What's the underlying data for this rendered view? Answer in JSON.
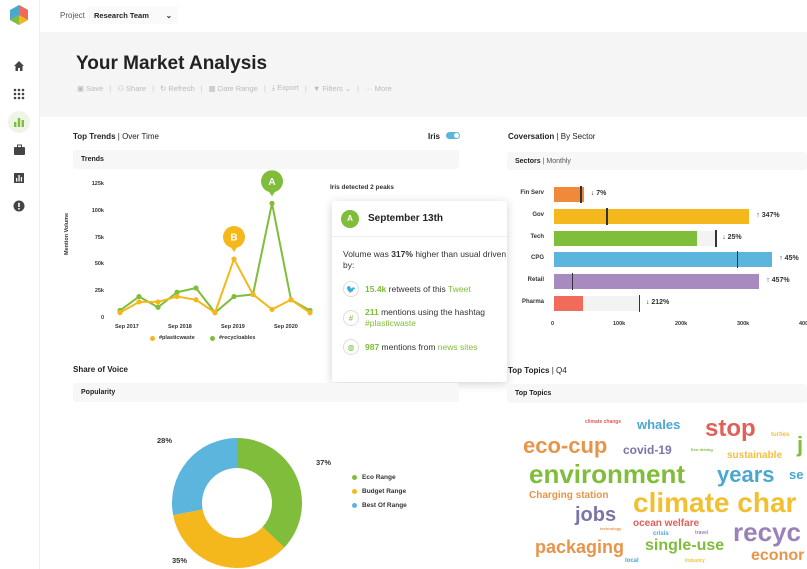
{
  "topbar": {
    "project_label": "Project",
    "project_value": "Research Team"
  },
  "page": {
    "title": "Your Market Analysis"
  },
  "toolbar": [
    "Save",
    "Share",
    "Refresh",
    "Date Range",
    "Export",
    "Filters",
    "More"
  ],
  "trends": {
    "title": "Top Trends",
    "subtitle": "Over Time",
    "iris_label": "Iris",
    "subhead": "Trends",
    "ylabel": "Mention Volume",
    "peaks_text": "Iris detected 2 peaks",
    "yticks": [
      "125k",
      "100k",
      "75k",
      "50k",
      "25k",
      "0"
    ],
    "xticks": [
      "Sep 2017",
      "Sep 2018",
      "Sep 2019",
      "Sep 2020"
    ],
    "markers": {
      "a": "A",
      "b": "B"
    },
    "legend": [
      "#plasticwaste",
      "#recycloables"
    ]
  },
  "tooltip": {
    "badge": "A",
    "date": "September 13th",
    "line1_pre": "Volume was ",
    "line1_bold": "317%",
    "line1_post": " higher than usual driven by:",
    "r1_num": "15.4k",
    "r1_text": " retweets of this ",
    "r1_link": "Tweet",
    "r2_num": "211",
    "r2_text": " mentions using the hashtag ",
    "r2_link": "#plasticwaste",
    "r3_num": "987",
    "r3_text": " mentions from ",
    "r3_link": "news sites"
  },
  "sectors": {
    "title": "Coversation",
    "subtitle": "By Sector",
    "subhead": "Sectors",
    "subhead2": "Monthly",
    "xticks": [
      "0",
      "100k",
      "200k",
      "300k",
      "400"
    ]
  },
  "share": {
    "title": "Share of Voice",
    "subhead": "Popularity"
  },
  "topics": {
    "title": "Top Topics",
    "subtitle": "Q4",
    "subhead": "Top Topics",
    "words": [
      {
        "t": "climate change",
        "c": "#e0605a"
      },
      {
        "t": "whales",
        "c": "#4aa8d0"
      },
      {
        "t": "stop",
        "c": "#e0605a"
      },
      {
        "t": "eco-cup",
        "c": "#e8954a"
      },
      {
        "t": "covid-19",
        "c": "#7a75a8"
      },
      {
        "t": "turtles",
        "c": "#f0c040"
      },
      {
        "t": "j",
        "c": "#7fbd3a"
      },
      {
        "t": "Eco driving",
        "c": "#7fbd3a"
      },
      {
        "t": "sustainable",
        "c": "#f0c040"
      },
      {
        "t": "environment",
        "c": "#7fbd3a"
      },
      {
        "t": "years",
        "c": "#4aa8d0"
      },
      {
        "t": "se",
        "c": "#4aa8d0"
      },
      {
        "t": "Charging station",
        "c": "#e8954a"
      },
      {
        "t": "climate char",
        "c": "#f0c030"
      },
      {
        "t": "jobs",
        "c": "#7a75a8"
      },
      {
        "t": "ocean welfare",
        "c": "#e0605a"
      },
      {
        "t": "recyc",
        "c": "#9a82b8"
      },
      {
        "t": "technology",
        "c": "#e8954a"
      },
      {
        "t": "crisis",
        "c": "#4aa8d0"
      },
      {
        "t": "travel",
        "c": "#9a82b8"
      },
      {
        "t": "packaging",
        "c": "#e8954a"
      },
      {
        "t": "single-use",
        "c": "#7fbd3a"
      },
      {
        "t": "econor",
        "c": "#e8954a"
      },
      {
        "t": "local",
        "c": "#4aa8d0"
      },
      {
        "t": "industry",
        "c": "#f0c040"
      }
    ]
  },
  "chart_data": [
    {
      "type": "line",
      "title": "Trends",
      "ylabel": "Mention Volume",
      "ylim": [
        0,
        125000
      ],
      "x": [
        "p1",
        "p2",
        "p3",
        "p4",
        "p5",
        "p6",
        "p7",
        "p8",
        "p9",
        "p10",
        "p11"
      ],
      "series": [
        {
          "name": "#plasticwaste",
          "color": "#f5b81c",
          "values": [
            5000,
            15000,
            15000,
            20000,
            17000,
            5000,
            55000,
            22000,
            8000,
            17000,
            5000
          ]
        },
        {
          "name": "#recycloables",
          "color": "#7fbd3a",
          "values": [
            7000,
            20000,
            10000,
            24000,
            28000,
            5000,
            20000,
            22000,
            107000,
            17000,
            7000
          ]
        }
      ]
    },
    {
      "type": "bar",
      "title": "Sectors",
      "categories": [
        "Fin Serv",
        "Gov",
        "Tech",
        "CPG",
        "Retail",
        "Pharma"
      ],
      "values": [
        48000,
        315000,
        231000,
        352000,
        331000,
        46000
      ],
      "targets": [
        42000,
        84000,
        260000,
        295000,
        29000,
        137000
      ],
      "changes": [
        "↓ 7%",
        "↑ 347%",
        "↓ 25%",
        "↑ 45%",
        "↑ 457%",
        "↓ 212%"
      ],
      "colors": [
        "#f08a3a",
        "#f5b81c",
        "#7fbd3a",
        "#5bb5dc",
        "#a78bc0",
        "#f06b5a"
      ],
      "xlim": [
        0,
        400000
      ]
    },
    {
      "type": "pie",
      "title": "Popularity",
      "categories": [
        "Eco Range",
        "Budget Range",
        "Best Of Range"
      ],
      "values": [
        37,
        35,
        28
      ],
      "labels": [
        "37%",
        "35%",
        "28%"
      ],
      "colors": [
        "#7fbd3a",
        "#f5b81c",
        "#5bb5dc"
      ]
    }
  ]
}
